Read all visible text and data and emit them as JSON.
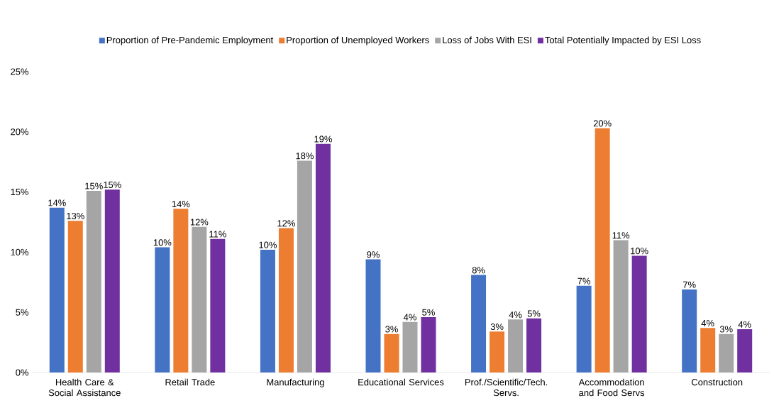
{
  "chart_data": {
    "type": "bar",
    "categories": [
      "Health Care & Social Assistance",
      "Retail Trade",
      "Manufacturing",
      "Educational Services",
      "Prof./Scientific/Tech. Servs.",
      "Accommodation and Food Servs",
      "Construction"
    ],
    "series": [
      {
        "name": "Proportion of Pre-Pandemic Employment",
        "color": "#4472c4",
        "values": [
          13.7,
          10.4,
          10.2,
          9.4,
          8.1,
          7.2,
          6.9
        ],
        "value_labels": [
          "14%",
          "10%",
          "10%",
          "9%",
          "8%",
          "7%",
          "7%"
        ]
      },
      {
        "name": "Proportion of Unemployed Workers",
        "color": "#ed7d31",
        "values": [
          12.6,
          13.6,
          12.0,
          3.2,
          3.4,
          20.3,
          3.7
        ],
        "value_labels": [
          "13%",
          "14%",
          "12%",
          "3%",
          "3%",
          "20%",
          "4%"
        ]
      },
      {
        "name": "Loss of Jobs With ESI",
        "color": "#a5a5a5",
        "values": [
          15.1,
          12.1,
          17.6,
          4.2,
          4.4,
          11.0,
          3.2
        ],
        "value_labels": [
          "15%",
          "12%",
          "18%",
          "4%",
          "4%",
          "11%",
          "3%"
        ]
      },
      {
        "name": "Total Potentially Impacted by ESI Loss",
        "color": "#7030a0",
        "values": [
          15.2,
          11.1,
          19.0,
          4.6,
          4.5,
          9.7,
          3.6
        ],
        "value_labels": [
          "15%",
          "11%",
          "19%",
          "5%",
          "5%",
          "10%",
          "4%"
        ]
      }
    ],
    "ylim": [
      0,
      25
    ],
    "yticks": [
      {
        "value": 0,
        "label": "0%"
      },
      {
        "value": 5,
        "label": "5%"
      },
      {
        "value": 10,
        "label": "10%"
      },
      {
        "value": 15,
        "label": "15%"
      },
      {
        "value": 20,
        "label": "20%"
      },
      {
        "value": 25,
        "label": "25%"
      }
    ],
    "grid": false,
    "legend": "top"
  }
}
